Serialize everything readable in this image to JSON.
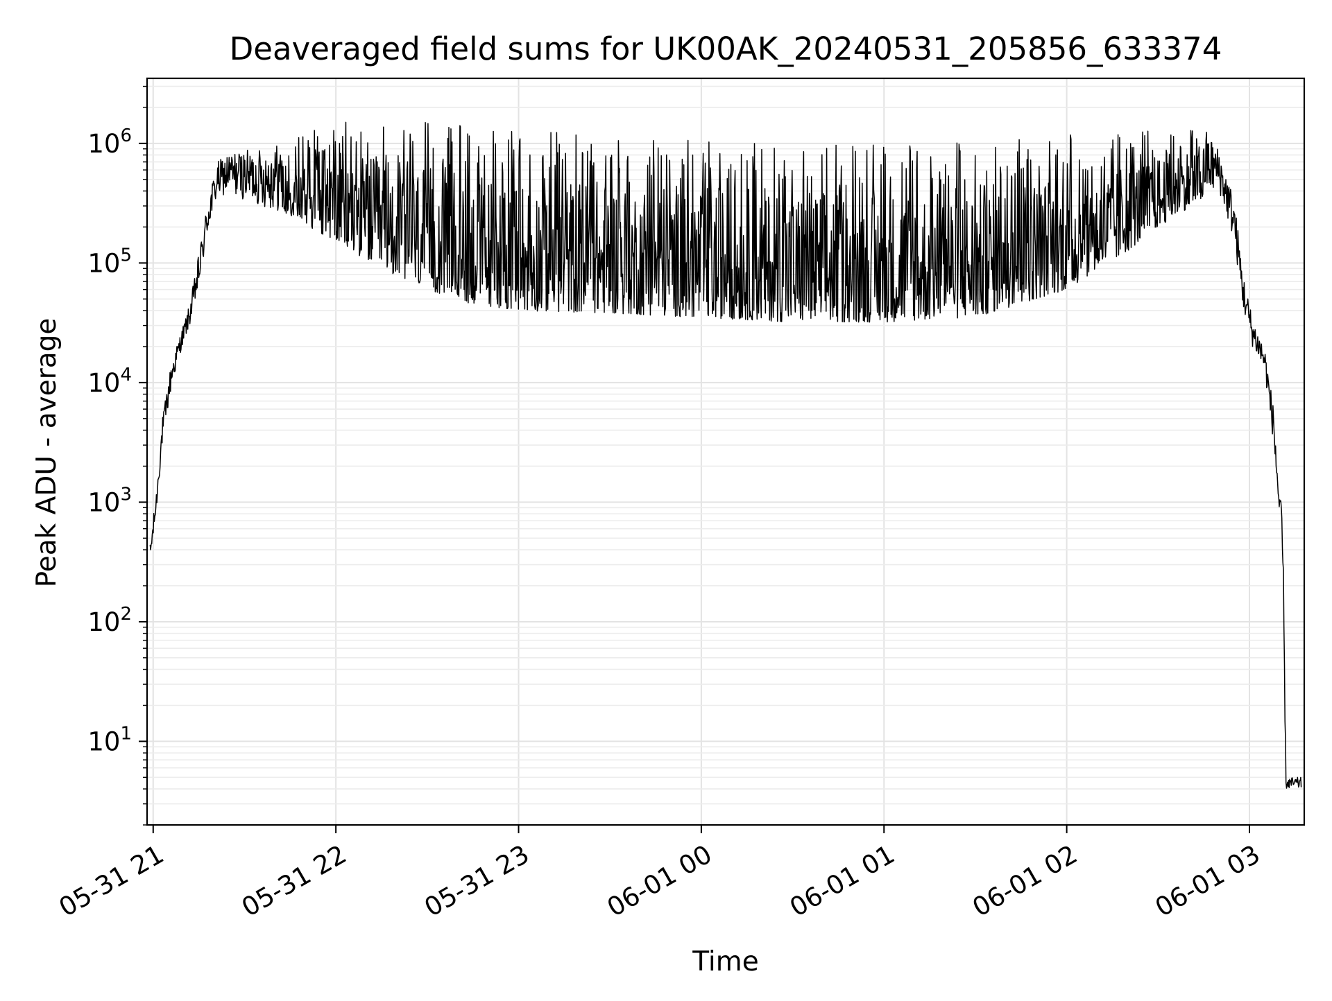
{
  "chart_data": {
    "type": "line",
    "title": "Deaveraged field sums for UK00AK_20240531_205856_633374",
    "xlabel": "Time",
    "ylabel": "Peak ADU - average",
    "yscale": "log",
    "xlim": [
      "2024-05-31 20:58",
      "2024-06-01 03:18"
    ],
    "ylim": [
      2,
      3500000
    ],
    "grid": true,
    "x_ticks": [
      {
        "value": "2024-05-31 21:00",
        "label": "05-31 21"
      },
      {
        "value": "2024-05-31 22:00",
        "label": "05-31 22"
      },
      {
        "value": "2024-05-31 23:00",
        "label": "05-31 23"
      },
      {
        "value": "2024-06-01 00:00",
        "label": "06-01 00"
      },
      {
        "value": "2024-06-01 01:00",
        "label": "06-01 01"
      },
      {
        "value": "2024-06-01 02:00",
        "label": "06-01 02"
      },
      {
        "value": "2024-06-01 03:00",
        "label": "06-01 03"
      }
    ],
    "y_ticks": [
      {
        "value": 10,
        "base": "10",
        "exp": "1"
      },
      {
        "value": 100,
        "base": "10",
        "exp": "2"
      },
      {
        "value": 1000,
        "base": "10",
        "exp": "3"
      },
      {
        "value": 10000,
        "base": "10",
        "exp": "4"
      },
      {
        "value": 100000,
        "base": "10",
        "exp": "5"
      },
      {
        "value": 1000000,
        "base": "10",
        "exp": "6"
      }
    ],
    "series": [
      {
        "color": "#000000",
        "envelope": [
          {
            "x": "2024-05-31 20:59",
            "low": 300,
            "high": 450
          },
          {
            "x": "2024-05-31 21:01",
            "low": 800,
            "high": 1200
          },
          {
            "x": "2024-05-31 21:03",
            "low": 3000,
            "high": 5000
          },
          {
            "x": "2024-05-31 21:06",
            "low": 9000,
            "high": 15000
          },
          {
            "x": "2024-05-31 21:09",
            "low": 18000,
            "high": 26000
          },
          {
            "x": "2024-05-31 21:12",
            "low": 30000,
            "high": 45000
          },
          {
            "x": "2024-05-31 21:15",
            "low": 60000,
            "high": 120000
          },
          {
            "x": "2024-05-31 21:18",
            "low": 180000,
            "high": 350000
          },
          {
            "x": "2024-05-31 21:21",
            "low": 350000,
            "high": 700000
          },
          {
            "x": "2024-05-31 21:25",
            "low": 380000,
            "high": 850000
          },
          {
            "x": "2024-05-31 21:35",
            "low": 300000,
            "high": 900000
          },
          {
            "x": "2024-05-31 21:45",
            "low": 250000,
            "high": 1100000
          },
          {
            "x": "2024-05-31 22:00",
            "low": 150000,
            "high": 1500000
          },
          {
            "x": "2024-05-31 22:15",
            "low": 90000,
            "high": 1600000
          },
          {
            "x": "2024-05-31 22:30",
            "low": 60000,
            "high": 1500000
          },
          {
            "x": "2024-05-31 22:45",
            "low": 45000,
            "high": 1400000
          },
          {
            "x": "2024-05-31 23:00",
            "low": 40000,
            "high": 1300000
          },
          {
            "x": "2024-05-31 23:30",
            "low": 38000,
            "high": 1200000
          },
          {
            "x": "2024-06-01 00:00",
            "low": 35000,
            "high": 1100000
          },
          {
            "x": "2024-06-01 00:30",
            "low": 32000,
            "high": 1000000
          },
          {
            "x": "2024-06-01 01:00",
            "low": 32000,
            "high": 1000000
          },
          {
            "x": "2024-06-01 01:30",
            "low": 35000,
            "high": 1100000
          },
          {
            "x": "2024-06-01 02:00",
            "low": 60000,
            "high": 1200000
          },
          {
            "x": "2024-06-01 02:15",
            "low": 100000,
            "high": 1200000
          },
          {
            "x": "2024-06-01 02:30",
            "low": 200000,
            "high": 1300000
          },
          {
            "x": "2024-06-01 02:45",
            "low": 350000,
            "high": 1400000
          },
          {
            "x": "2024-06-01 02:50",
            "low": 400000,
            "high": 900000
          },
          {
            "x": "2024-06-01 02:55",
            "low": 150000,
            "high": 350000
          },
          {
            "x": "2024-06-01 02:58",
            "low": 40000,
            "high": 80000
          },
          {
            "x": "2024-06-01 03:01",
            "low": 20000,
            "high": 35000
          },
          {
            "x": "2024-06-01 03:05",
            "low": 12000,
            "high": 20000
          },
          {
            "x": "2024-06-01 03:08",
            "low": 3000,
            "high": 6000
          },
          {
            "x": "2024-06-01 03:11",
            "low": 200,
            "high": 600
          },
          {
            "x": "2024-06-01 03:12",
            "low": 4,
            "high": 5
          },
          {
            "x": "2024-06-01 03:17",
            "low": 4,
            "high": 5
          }
        ]
      }
    ]
  }
}
